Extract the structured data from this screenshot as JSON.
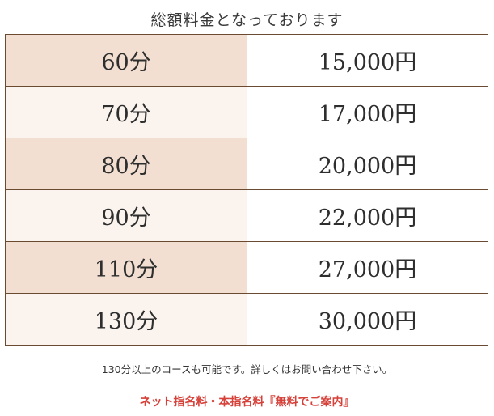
{
  "heading": "総額料金となっております",
  "prices": [
    {
      "duration": "60分",
      "price": "15,000円"
    },
    {
      "duration": "70分",
      "price": "17,000円"
    },
    {
      "duration": "80分",
      "price": "20,000円"
    },
    {
      "duration": "90分",
      "price": "22,000円"
    },
    {
      "duration": "110分",
      "price": "27,000円"
    },
    {
      "duration": "130分",
      "price": "30,000円"
    }
  ],
  "note": "130分以上のコースも可能です。詳しくはお問い合わせ下さい。",
  "notice": "ネット指名料・本指名料『無料でご案内』",
  "colors": {
    "row_dark": "#f3dfd2",
    "row_light": "#fbf3ee",
    "border": "#6b4a32",
    "notice_red": "#d6413a"
  }
}
